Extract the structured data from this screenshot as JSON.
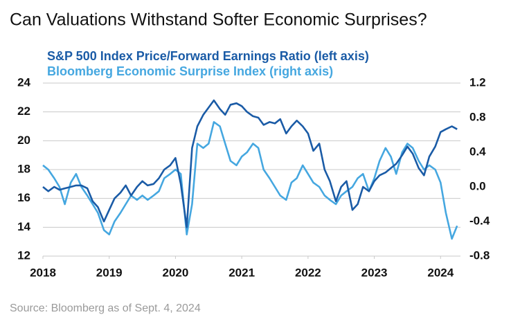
{
  "chart_data": {
    "type": "line",
    "title": "Can Valuations Withstand Softer Economic Surprises?",
    "source": "Source: Bloomberg as of Sept. 4, 2024",
    "x": [
      2018.0,
      2018.08,
      2018.17,
      2018.25,
      2018.33,
      2018.42,
      2018.5,
      2018.58,
      2018.67,
      2018.75,
      2018.83,
      2018.92,
      2019.0,
      2019.08,
      2019.17,
      2019.25,
      2019.33,
      2019.42,
      2019.5,
      2019.58,
      2019.67,
      2019.75,
      2019.83,
      2019.92,
      2020.0,
      2020.08,
      2020.17,
      2020.25,
      2020.33,
      2020.42,
      2020.5,
      2020.58,
      2020.67,
      2020.75,
      2020.83,
      2020.92,
      2021.0,
      2021.08,
      2021.17,
      2021.25,
      2021.33,
      2021.42,
      2021.5,
      2021.58,
      2021.67,
      2021.75,
      2021.83,
      2021.92,
      2022.0,
      2022.08,
      2022.17,
      2022.25,
      2022.33,
      2022.42,
      2022.5,
      2022.58,
      2022.67,
      2022.75,
      2022.83,
      2022.92,
      2023.0,
      2023.08,
      2023.17,
      2023.25,
      2023.33,
      2023.42,
      2023.5,
      2023.58,
      2023.67,
      2023.75,
      2023.83,
      2023.92,
      2024.0,
      2024.08,
      2024.17,
      2024.25
    ],
    "series": [
      {
        "name": "S&P 500 Index Price/Forward Earnings Ratio (left axis)",
        "color": "#1a5ba6",
        "axis": "y",
        "values": [
          16.8,
          16.5,
          16.8,
          16.6,
          16.7,
          16.8,
          16.9,
          16.9,
          16.7,
          15.8,
          15.4,
          14.4,
          15.2,
          16.0,
          16.4,
          16.9,
          16.2,
          16.8,
          17.2,
          16.9,
          17.0,
          17.4,
          18.0,
          18.3,
          18.8,
          17.0,
          14.0,
          19.5,
          21.0,
          21.8,
          22.3,
          22.8,
          22.2,
          21.8,
          22.5,
          22.6,
          22.4,
          22.0,
          21.7,
          21.6,
          21.1,
          21.3,
          21.2,
          21.5,
          20.5,
          21.0,
          21.4,
          21.0,
          20.5,
          19.3,
          19.8,
          18.0,
          17.2,
          15.8,
          16.8,
          17.2,
          15.2,
          15.6,
          16.8,
          16.5,
          17.2,
          17.6,
          17.8,
          18.1,
          18.4,
          19.0,
          19.6,
          19.1,
          18.1,
          17.6,
          18.9,
          19.6,
          20.6,
          20.8,
          21.0,
          20.8
        ]
      },
      {
        "name": "Bloomberg Economic Surprise Index (right axis)",
        "color": "#45a7e0",
        "axis": "y2",
        "values": [
          0.25,
          0.2,
          0.1,
          0.0,
          -0.2,
          0.05,
          0.15,
          0.0,
          -0.1,
          -0.2,
          -0.3,
          -0.5,
          -0.55,
          -0.4,
          -0.3,
          -0.2,
          -0.1,
          -0.15,
          -0.1,
          -0.15,
          -0.1,
          -0.05,
          0.1,
          0.15,
          0.2,
          0.15,
          -0.55,
          -0.2,
          0.5,
          0.45,
          0.5,
          0.75,
          0.7,
          0.5,
          0.3,
          0.25,
          0.35,
          0.4,
          0.5,
          0.45,
          0.2,
          0.1,
          0.0,
          -0.1,
          -0.15,
          0.05,
          0.1,
          0.25,
          0.15,
          0.05,
          0.0,
          -0.1,
          -0.15,
          -0.2,
          -0.1,
          -0.05,
          0.0,
          0.1,
          0.15,
          -0.05,
          0.1,
          0.3,
          0.45,
          0.35,
          0.15,
          0.4,
          0.5,
          0.45,
          0.3,
          0.2,
          0.25,
          0.2,
          0.05,
          -0.3,
          -0.6,
          -0.45
        ]
      }
    ],
    "xlim": [
      2018,
      2024.3
    ],
    "xticks": [
      2018,
      2019,
      2020,
      2021,
      2022,
      2023,
      2024
    ],
    "ylim": [
      12,
      24
    ],
    "yticks": [
      12,
      14,
      16,
      18,
      20,
      22,
      24
    ],
    "y2lim": [
      -0.8,
      1.2
    ],
    "y2ticks": [
      -0.8,
      -0.4,
      {
        "value": 0,
        "label": "0.0"
      },
      0.4,
      0.8,
      1.2
    ],
    "grid": true
  }
}
